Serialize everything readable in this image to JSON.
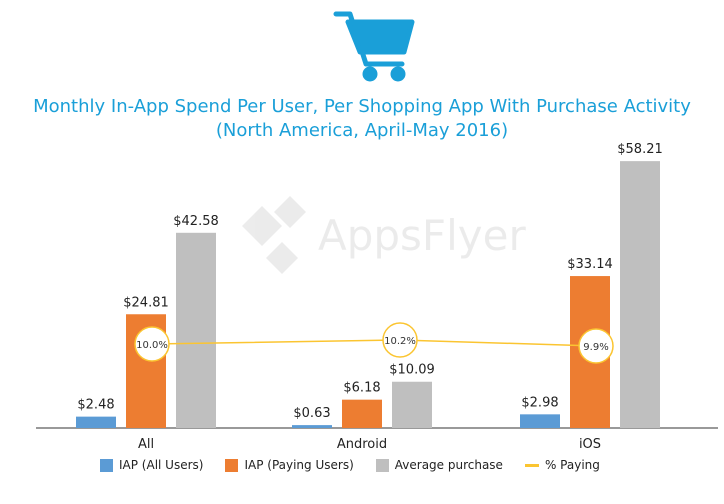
{
  "colors": {
    "iap_all": "#5b9bd5",
    "iap_paying": "#ed7d31",
    "avg_purchase": "#bfbfbf",
    "pct_paying": "#fbc531",
    "title": "#1a9fd8",
    "cart_icon": "#1a9fd8"
  },
  "icon": "shopping-cart-icon",
  "watermark": "AppsFlyer",
  "chart_data": {
    "type": "bar",
    "title": "Monthly In-App Spend Per User, Per Shopping App With Purchase Activity",
    "subtitle": "(North America, April-May 2016)",
    "categories": [
      "All",
      "Android",
      "iOS"
    ],
    "ylim": [
      0,
      65
    ],
    "grid": false,
    "legend_position": "bottom",
    "series": [
      {
        "name": "IAP (All Users)",
        "values": [
          2.48,
          0.63,
          2.98
        ],
        "labels": [
          "$2.48",
          "$0.63",
          "$2.98"
        ],
        "color": "#5b9bd5"
      },
      {
        "name": "IAP (Paying Users)",
        "values": [
          24.81,
          6.18,
          33.14
        ],
        "labels": [
          "$24.81",
          "$6.18",
          "$33.14"
        ],
        "color": "#ed7d31"
      },
      {
        "name": "Average purchase",
        "values": [
          42.58,
          10.09,
          58.21
        ],
        "labels": [
          "$42.58",
          "$10.09",
          "$58.21"
        ],
        "color": "#bfbfbf"
      }
    ],
    "line_series": {
      "name": "% Paying",
      "values": [
        10.0,
        10.2,
        9.9
      ],
      "labels": [
        "10.0%",
        "10.2%",
        "9.9%"
      ],
      "color": "#fbc531"
    }
  }
}
